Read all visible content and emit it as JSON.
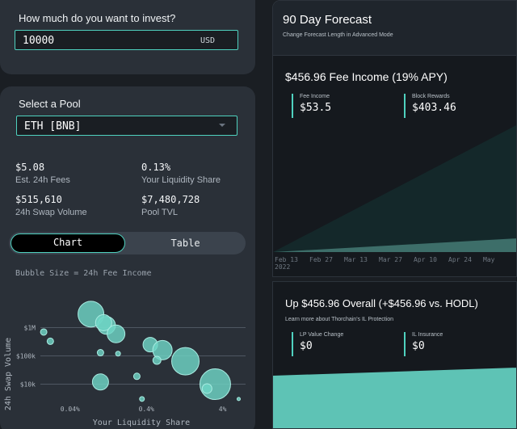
{
  "invest": {
    "question": "How much do you want to invest?",
    "amount": "10000",
    "currency": "USD"
  },
  "pool": {
    "heading": "Select a Pool",
    "selected": "ETH [BNB]",
    "stats": [
      {
        "value": "$5.08",
        "label": "Est. 24h Fees"
      },
      {
        "value": "0.13%",
        "label": "Your Liquidity Share"
      },
      {
        "value": "$515,610",
        "label": "24h Swap Volume"
      },
      {
        "value": "$7,480,728",
        "label": "Pool TVL"
      }
    ],
    "tabs": {
      "chart": "Chart",
      "table": "Table",
      "active": "Chart"
    }
  },
  "bubble_chart": {
    "caption": "Bubble Size = 24h Fee Income",
    "ylabel": "24h Swap Volume",
    "xlabel": "Your Liquidity Share",
    "yticks": [
      "$1M",
      "$100k",
      "$10k"
    ],
    "xticks": [
      "0.04%",
      "0.4%",
      "4%"
    ],
    "color": "#6fd6c6"
  },
  "chart_data": {
    "type": "scatter",
    "title": "",
    "xlabel": "Your Liquidity Share",
    "ylabel": "24h Swap Volume",
    "x_scale": "log",
    "y_scale": "log",
    "x_unit": "%",
    "y_unit": "$",
    "xlim": [
      0.01,
      8
    ],
    "ylim": [
      2000,
      20000000
    ],
    "points": [
      {
        "x": 0.075,
        "y": 3000000,
        "size": 16
      },
      {
        "x": 0.12,
        "y": 1200000,
        "size": 11
      },
      {
        "x": 0.11,
        "y": 1500000,
        "size": 10
      },
      {
        "x": 0.16,
        "y": 600000,
        "size": 11
      },
      {
        "x": 0.018,
        "y": 700000,
        "size": 4
      },
      {
        "x": 0.022,
        "y": 330000,
        "size": 4
      },
      {
        "x": 0.1,
        "y": 130000,
        "size": 4
      },
      {
        "x": 0.17,
        "y": 120000,
        "size": 3
      },
      {
        "x": 0.45,
        "y": 250000,
        "size": 9
      },
      {
        "x": 0.65,
        "y": 160000,
        "size": 12
      },
      {
        "x": 1.3,
        "y": 65000,
        "size": 17
      },
      {
        "x": 0.55,
        "y": 70000,
        "size": 5
      },
      {
        "x": 0.1,
        "y": 12000,
        "size": 10
      },
      {
        "x": 0.3,
        "y": 19000,
        "size": 4
      },
      {
        "x": 0.35,
        "y": 3000,
        "size": 3
      },
      {
        "x": 3.2,
        "y": 10000,
        "size": 19
      },
      {
        "x": 2.5,
        "y": 7000,
        "size": 6
      },
      {
        "x": 6.5,
        "y": 3000,
        "size": 2
      }
    ]
  },
  "forecast": {
    "title": "90 Day Forecast",
    "subtitle": "Change Forecast Length in Advanced Mode",
    "headline": "$456.96 Fee Income (19% APY)",
    "metrics": [
      {
        "label": "Fee Income",
        "value": "$53.5"
      },
      {
        "label": "Block Rewards",
        "value": "$403.46"
      }
    ],
    "area_colors": {
      "fee": "#3d6e69",
      "rewards": "#14282a"
    },
    "xticks": [
      "Feb 13",
      "Feb 27",
      "Mar 13",
      "Mar 27",
      "Apr 10",
      "Apr 24",
      "May"
    ],
    "year_label": "2022"
  },
  "il": {
    "headline": "Up $456.96 Overall (+$456.96 vs. HODL)",
    "link": "Learn more about Thorchain's IL Protection",
    "metrics": [
      {
        "label": "LP Value Change",
        "value": "$0"
      },
      {
        "label": "IL Insurance",
        "value": "$0"
      }
    ],
    "fill_color": "#5ec3b5"
  }
}
